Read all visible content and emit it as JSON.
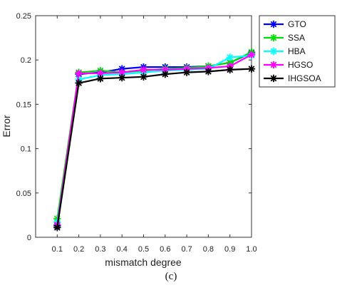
{
  "chart_data": {
    "type": "line",
    "xlabel": "mismatch degree",
    "ylabel": "Error",
    "caption": "(c)",
    "x": [
      0.1,
      0.2,
      0.3,
      0.4,
      0.5,
      0.6,
      0.7,
      0.8,
      0.9,
      1.0
    ],
    "x_tick_labels": [
      "0.1",
      "0.2",
      "0.3",
      "0.4",
      "0.5",
      "0.6",
      "0.7",
      "0.8",
      "0.9",
      "1.0"
    ],
    "xlim": [
      0.0,
      1.0
    ],
    "ylim": [
      0,
      0.25
    ],
    "y_ticks": [
      0,
      0.05,
      0.1,
      0.15,
      0.2,
      0.25
    ],
    "y_tick_labels": [
      "0",
      "0.05",
      "0.1",
      "0.15",
      "0.2",
      "0.25"
    ],
    "grid": false,
    "legend_position": "outside-top-right",
    "series": [
      {
        "name": "GTO",
        "color": "#0000ff",
        "marker": "asterisk",
        "values": [
          0.013,
          0.184,
          0.186,
          0.19,
          0.192,
          0.192,
          0.192,
          0.193,
          0.197,
          0.208
        ]
      },
      {
        "name": "SSA",
        "color": "#00e000",
        "marker": "asterisk",
        "values": [
          0.021,
          0.186,
          0.188,
          0.186,
          0.188,
          0.19,
          0.191,
          0.193,
          0.197,
          0.209
        ]
      },
      {
        "name": "HBA",
        "color": "#00ffff",
        "marker": "asterisk",
        "values": [
          0.017,
          0.178,
          0.183,
          0.184,
          0.186,
          0.188,
          0.189,
          0.19,
          0.203,
          0.205
        ]
      },
      {
        "name": "HGSO",
        "color": "#ff00ff",
        "marker": "asterisk",
        "values": [
          0.014,
          0.185,
          0.185,
          0.186,
          0.189,
          0.189,
          0.19,
          0.191,
          0.193,
          0.206
        ]
      },
      {
        "name": "IHGSOA",
        "color": "#000000",
        "marker": "asterisk",
        "values": [
          0.011,
          0.174,
          0.179,
          0.18,
          0.181,
          0.184,
          0.186,
          0.187,
          0.189,
          0.19
        ]
      }
    ]
  }
}
